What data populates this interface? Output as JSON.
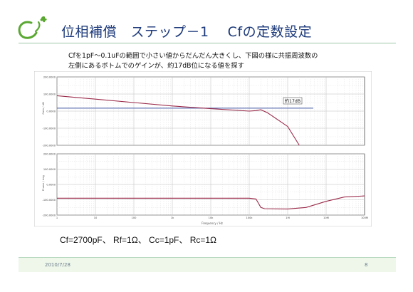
{
  "slide": {
    "title": "位相補償　ステップ－1　 Cfの定数設定",
    "description_lines": [
      "Cfを1pF～0.1uFの範囲で小さい値からだんだん大きくし、下図の様に共振周波数の",
      "左側にあるボトムでのゲインが、約17dB位になる値を探す"
    ],
    "params": "Cf=2700pF、 Rf=1Ω、 Cc=1pF、 Rc=1Ω",
    "date": "2010/7/28",
    "page": "8"
  },
  "colors": {
    "title": "#1d3a7a",
    "logo": "#5aa832",
    "gain_curve": "#9a2a4a",
    "marker_line": "#3c52a0",
    "rule": "#9cc8a8"
  },
  "chart_data": [
    {
      "type": "line",
      "ylabel": "Gain / dB",
      "ylim": [
        -200,
        200
      ],
      "yticks": [
        "200.0000",
        "100.0000",
        "0.0000",
        "-100.0000",
        "-200.0000"
      ],
      "x_scale": "log",
      "annotation": "約17dB",
      "reference_line_y": 17,
      "series": [
        {
          "x": [
            1,
            10,
            100,
            1000,
            10000,
            100000,
            150000,
            200000,
            300000,
            1000000,
            2000000
          ],
          "y": [
            90,
            70,
            50,
            30,
            14,
            0,
            3,
            8,
            -10,
            -90,
            -200
          ]
        }
      ]
    },
    {
      "type": "line",
      "ylabel": "Phase / deg",
      "xlabel": "Frequency / Hz",
      "ylim": [
        -200,
        200
      ],
      "yticks": [
        "200.0000",
        "100.0000",
        "0.0000",
        "-100.0000",
        "-200.0000"
      ],
      "x_scale": "log",
      "xticks": [
        "1",
        "10",
        "100",
        "1k",
        "10k",
        "100k",
        "1M",
        "10M",
        "100M"
      ],
      "series": [
        {
          "x": [
            1,
            10000,
            100000,
            150000,
            180000,
            200000,
            250000,
            1000000,
            3000000,
            10000000,
            30000000,
            100000000
          ],
          "y": [
            -90,
            -90,
            -90,
            -95,
            -130,
            -150,
            -158,
            -160,
            -150,
            -110,
            -82,
            -75
          ]
        }
      ]
    }
  ]
}
